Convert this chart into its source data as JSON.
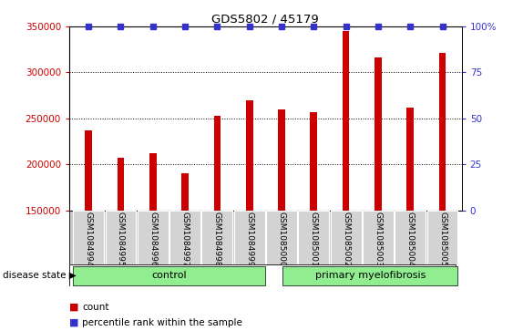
{
  "title": "GDS5802 / 45179",
  "categories": [
    "GSM1084994",
    "GSM1084995",
    "GSM1084996",
    "GSM1084997",
    "GSM1084998",
    "GSM1084999",
    "GSM1085000",
    "GSM1085001",
    "GSM1085002",
    "GSM1085003",
    "GSM1085004",
    "GSM1085005"
  ],
  "bar_values": [
    237000,
    207000,
    212000,
    190000,
    253000,
    270000,
    260000,
    257000,
    345000,
    316000,
    262000,
    321000
  ],
  "percentile_values": [
    100,
    100,
    100,
    100,
    100,
    100,
    100,
    100,
    100,
    100,
    100,
    100
  ],
  "bar_color": "#cc0000",
  "percentile_color": "#3333cc",
  "ylim_left": [
    150000,
    350000
  ],
  "ylim_right": [
    0,
    100
  ],
  "yticks_left": [
    150000,
    200000,
    250000,
    300000,
    350000
  ],
  "yticks_right": [
    0,
    25,
    50,
    75,
    100
  ],
  "ytick_right_labels": [
    "0",
    "25",
    "50",
    "75",
    "100%"
  ],
  "grid_color": "black",
  "grid_style": "dotted",
  "control_label": "control",
  "primary_label": "primary myelofibrosis",
  "disease_state_label": "disease state",
  "legend_count": "count",
  "legend_percentile": "percentile rank within the sample",
  "bar_color_legend": "#cc0000",
  "percentile_color_legend": "#3333cc",
  "tick_area_bg": "#c8c8c8",
  "control_bg": "#90ee90",
  "primary_bg": "#90ee90",
  "n_control": 6,
  "n_primary": 6
}
